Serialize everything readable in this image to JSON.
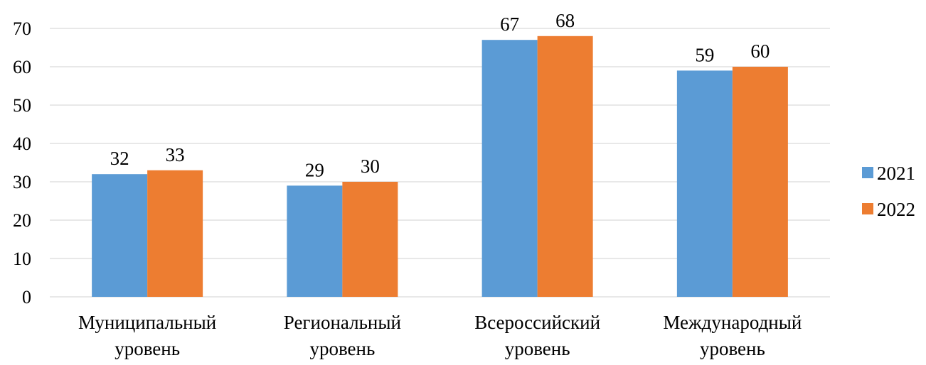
{
  "chart_data": {
    "type": "bar",
    "title": "",
    "categories": [
      [
        "Муниципальный",
        "уровень"
      ],
      [
        "Региональный",
        "уровень"
      ],
      [
        "Всероссийский",
        "уровень"
      ],
      [
        "Международный",
        "уровень"
      ]
    ],
    "series": [
      {
        "name": "2021",
        "color": "#5b9bd5",
        "values": [
          32,
          29,
          67,
          59
        ]
      },
      {
        "name": "2022",
        "color": "#ed7d31",
        "values": [
          33,
          30,
          68,
          60
        ]
      }
    ],
    "ylim": [
      0,
      70
    ],
    "yticks": [
      0,
      10,
      20,
      30,
      40,
      50,
      60,
      70
    ],
    "grid": true,
    "data_labels": true,
    "legend_position": "right"
  }
}
